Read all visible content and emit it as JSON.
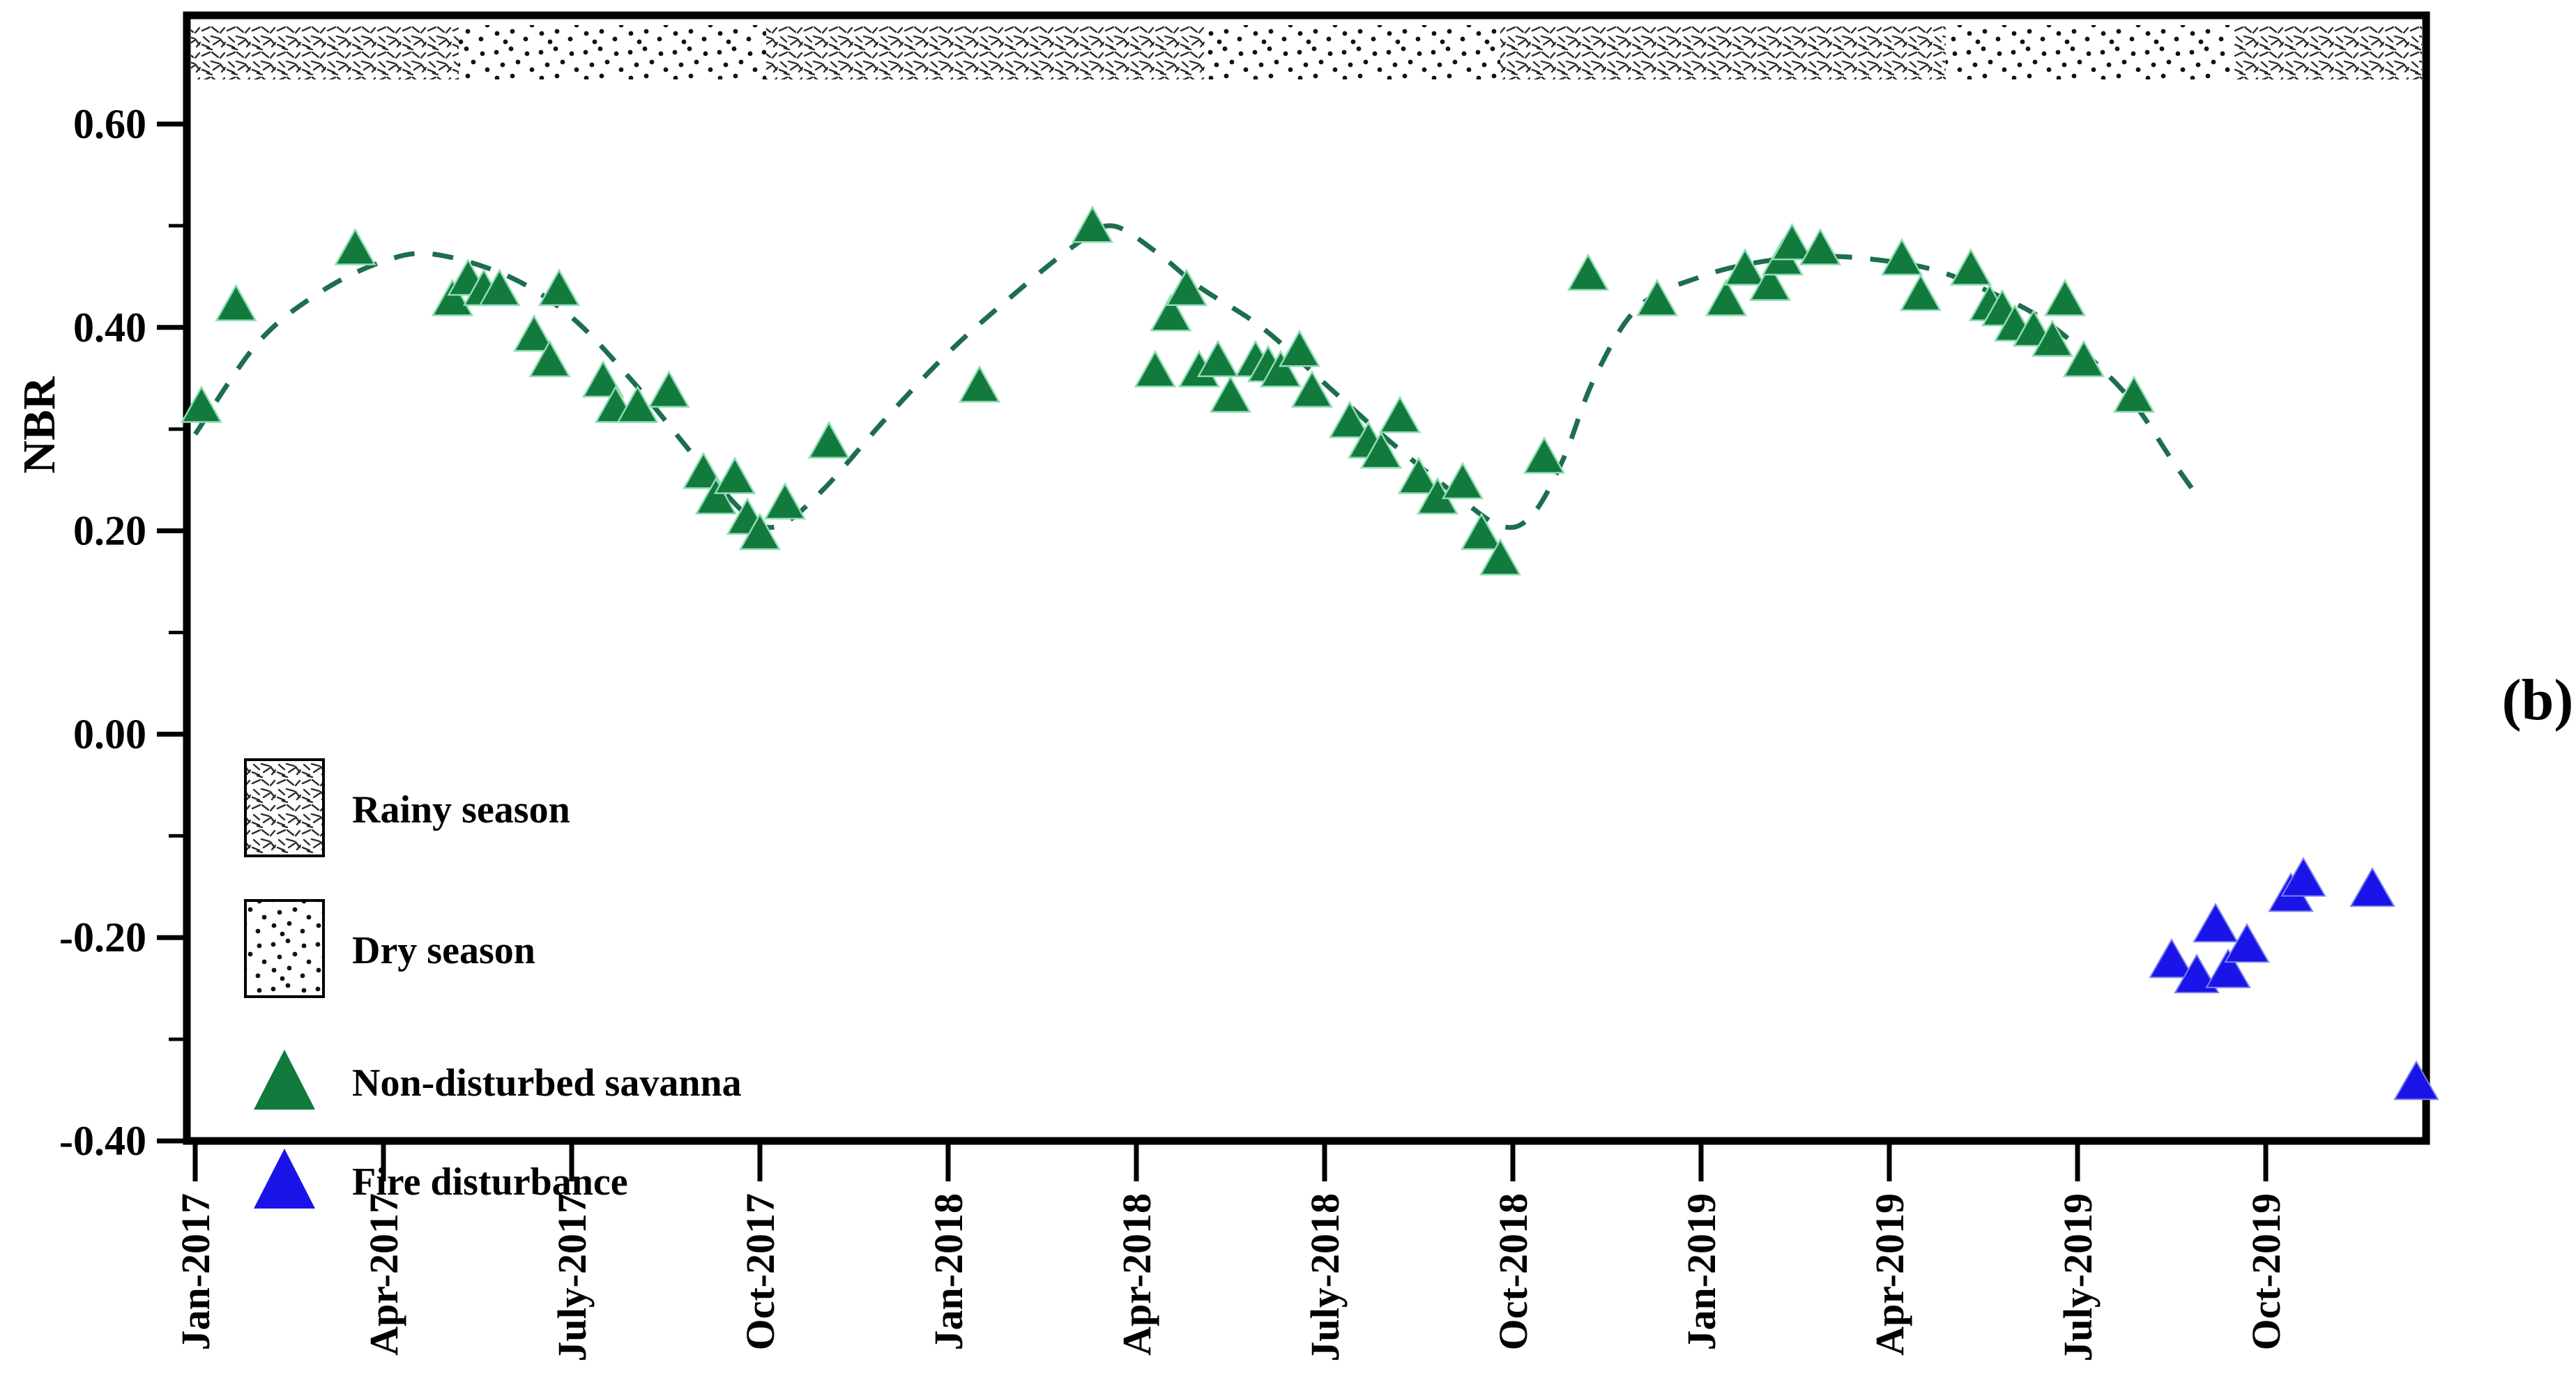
{
  "panel_label": "(b)",
  "y_axis": {
    "label": "NBR",
    "tick_labels": [
      "0.60",
      "0.40",
      "0.20",
      "0.00",
      "-0.20",
      "-0.40"
    ],
    "tick_values": [
      0.6,
      0.4,
      0.2,
      0.0,
      -0.2,
      -0.4
    ],
    "minor_tick_values": [
      0.5,
      0.3,
      0.1,
      -0.1,
      -0.3
    ]
  },
  "x_axis": {
    "tick_labels": [
      "Jan-2017",
      "Apr-2017",
      "July-2017",
      "Oct-2017",
      "Jan-2018",
      "Apr-2018",
      "July-2018",
      "Oct-2018",
      "Jan-2019",
      "Apr-2019",
      "July-2019",
      "Oct-2019"
    ],
    "tick_months": [
      0,
      3,
      6,
      9,
      12,
      15,
      18,
      21,
      24,
      27,
      30,
      33
    ]
  },
  "legend": [
    {
      "label": "Rainy season",
      "swatch": "crosshatch"
    },
    {
      "label": "Dry season",
      "swatch": "dots"
    },
    {
      "label": "Non-disturbed savanna",
      "swatch": "green-triangle"
    },
    {
      "label": "Fire disturbance",
      "swatch": "blue-triangle"
    }
  ],
  "colors": {
    "savanna_green": "#127a3c",
    "savanna_green_edge": "#8fdcb4",
    "fire_blue": "#1a14e8",
    "fire_blue_edge": "#7b80f2",
    "trend_green": "#1d6e4e",
    "pattern_ink": "#2b2b2b"
  },
  "chart_data": {
    "type": "scatter",
    "title": "",
    "xlabel": "",
    "ylabel": "NBR",
    "x_unit": "months since Jan-2017",
    "xlim_months": [
      -0.15,
      35.6
    ],
    "ylim": [
      -0.4,
      0.707
    ],
    "grid": false,
    "legend_position": "inside-left",
    "season_bands": [
      {
        "season": "rainy",
        "start_month": -0.15,
        "end_month": 4.2
      },
      {
        "season": "dry",
        "start_month": 4.2,
        "end_month": 9.1
      },
      {
        "season": "rainy",
        "start_month": 9.1,
        "end_month": 16.1
      },
      {
        "season": "dry",
        "start_month": 16.1,
        "end_month": 20.8
      },
      {
        "season": "rainy",
        "start_month": 20.8,
        "end_month": 27.9
      },
      {
        "season": "dry",
        "start_month": 27.9,
        "end_month": 32.5
      },
      {
        "season": "rainy",
        "start_month": 32.5,
        "end_month": 35.6
      }
    ],
    "series": [
      {
        "name": "Non-disturbed savanna",
        "marker": "triangle",
        "points": [
          [
            0.1,
            0.32
          ],
          [
            0.65,
            0.42
          ],
          [
            2.55,
            0.475
          ],
          [
            4.1,
            0.425
          ],
          [
            4.35,
            0.445
          ],
          [
            4.6,
            0.435
          ],
          [
            4.85,
            0.435
          ],
          [
            5.4,
            0.39
          ],
          [
            5.65,
            0.365
          ],
          [
            5.8,
            0.435
          ],
          [
            6.5,
            0.345
          ],
          [
            6.7,
            0.32
          ],
          [
            7.05,
            0.32
          ],
          [
            7.55,
            0.335
          ],
          [
            8.1,
            0.255
          ],
          [
            8.3,
            0.23
          ],
          [
            8.6,
            0.25
          ],
          [
            8.8,
            0.21
          ],
          [
            9.0,
            0.195
          ],
          [
            9.4,
            0.225
          ],
          [
            10.1,
            0.285
          ],
          [
            12.5,
            0.34
          ],
          [
            14.3,
            0.497
          ],
          [
            15.3,
            0.355
          ],
          [
            15.55,
            0.41
          ],
          [
            15.8,
            0.435
          ],
          [
            16.0,
            0.355
          ],
          [
            16.3,
            0.365
          ],
          [
            16.5,
            0.33
          ],
          [
            16.9,
            0.365
          ],
          [
            17.1,
            0.36
          ],
          [
            17.3,
            0.355
          ],
          [
            17.6,
            0.375
          ],
          [
            17.8,
            0.335
          ],
          [
            18.4,
            0.305
          ],
          [
            18.7,
            0.285
          ],
          [
            18.9,
            0.275
          ],
          [
            19.2,
            0.31
          ],
          [
            19.5,
            0.25
          ],
          [
            19.8,
            0.23
          ],
          [
            20.2,
            0.245
          ],
          [
            20.5,
            0.195
          ],
          [
            20.8,
            0.17
          ],
          [
            21.5,
            0.27
          ],
          [
            22.2,
            0.45
          ],
          [
            23.3,
            0.425
          ],
          [
            24.4,
            0.425
          ],
          [
            24.7,
            0.455
          ],
          [
            25.1,
            0.44
          ],
          [
            25.3,
            0.465
          ],
          [
            25.45,
            0.48
          ],
          [
            25.9,
            0.475
          ],
          [
            27.2,
            0.465
          ],
          [
            27.5,
            0.43
          ],
          [
            28.3,
            0.455
          ],
          [
            28.6,
            0.42
          ],
          [
            28.8,
            0.415
          ],
          [
            29.0,
            0.4
          ],
          [
            29.3,
            0.395
          ],
          [
            29.6,
            0.385
          ],
          [
            29.8,
            0.425
          ],
          [
            30.1,
            0.365
          ],
          [
            30.9,
            0.33
          ]
        ]
      },
      {
        "name": "Fire disturbance",
        "marker": "triangle",
        "points": [
          [
            31.5,
            -0.225
          ],
          [
            31.9,
            -0.24
          ],
          [
            32.2,
            -0.19
          ],
          [
            32.4,
            -0.235
          ],
          [
            32.7,
            -0.21
          ],
          [
            33.4,
            -0.16
          ],
          [
            33.6,
            -0.145
          ],
          [
            34.7,
            -0.155
          ],
          [
            35.4,
            -0.345
          ]
        ]
      }
    ],
    "trend_line": {
      "style": "dashed",
      "points": [
        [
          0,
          0.295
        ],
        [
          1,
          0.385
        ],
        [
          2,
          0.435
        ],
        [
          3,
          0.465
        ],
        [
          3.8,
          0.472
        ],
        [
          5,
          0.45
        ],
        [
          6,
          0.41
        ],
        [
          7,
          0.345
        ],
        [
          8,
          0.27
        ],
        [
          8.8,
          0.215
        ],
        [
          9.3,
          0.205
        ],
        [
          10,
          0.24
        ],
        [
          11,
          0.31
        ],
        [
          12,
          0.375
        ],
        [
          13,
          0.43
        ],
        [
          14,
          0.48
        ],
        [
          14.6,
          0.5
        ],
        [
          15.3,
          0.475
        ],
        [
          16,
          0.44
        ],
        [
          17,
          0.4
        ],
        [
          18,
          0.345
        ],
        [
          19,
          0.29
        ],
        [
          20,
          0.24
        ],
        [
          20.8,
          0.205
        ],
        [
          21.3,
          0.215
        ],
        [
          21.8,
          0.27
        ],
        [
          22.3,
          0.35
        ],
        [
          23,
          0.42
        ],
        [
          24,
          0.45
        ],
        [
          25,
          0.465
        ],
        [
          26,
          0.47
        ],
        [
          27,
          0.465
        ],
        [
          27.8,
          0.455
        ],
        [
          28.6,
          0.435
        ],
        [
          29.4,
          0.41
        ],
        [
          30.2,
          0.37
        ],
        [
          30.9,
          0.325
        ],
        [
          31.5,
          0.27
        ],
        [
          31.9,
          0.235
        ]
      ]
    }
  }
}
